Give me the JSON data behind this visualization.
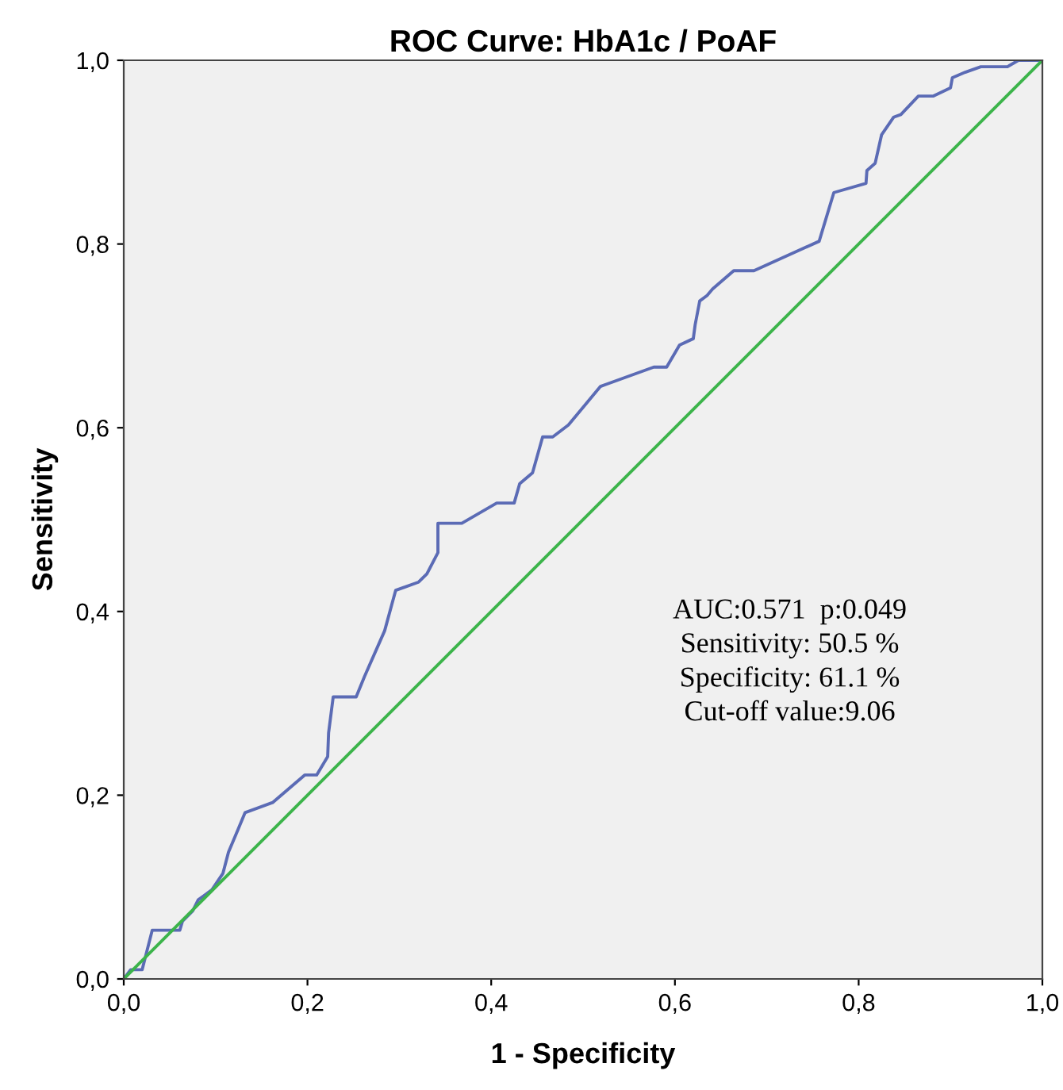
{
  "chart_data": {
    "type": "line",
    "title": "ROC Curve: HbA1c / PoAF",
    "xlabel": "1 - Specificity",
    "ylabel": "Sensitivity",
    "series": [
      {
        "color": "#5b6bb5",
        "x": [
          0,
          0.0075,
          0.02,
          0.031,
          0.061,
          0.064,
          0.075,
          0.081,
          0.096,
          0.108,
          0.114,
          0.125,
          0.132,
          0.162,
          0.197,
          0.21,
          0.222,
          0.223,
          0.228,
          0.253,
          0.262,
          0.284,
          0.296,
          0.321,
          0.33,
          0.342,
          0.342,
          0.368,
          0.406,
          0.425,
          0.431,
          0.445,
          0.456,
          0.467,
          0.484,
          0.519,
          0.577,
          0.591,
          0.605,
          0.62,
          0.622,
          0.627,
          0.635,
          0.641,
          0.664,
          0.686,
          0.757,
          0.773,
          0.808,
          0.809,
          0.818,
          0.825,
          0.838,
          0.846,
          0.865,
          0.881,
          0.9,
          0.902,
          0.916,
          0.933,
          0.962,
          0.974,
          1.0
        ],
        "values": [
          0,
          0.01,
          0.01,
          0.053,
          0.053,
          0.063,
          0.074,
          0.086,
          0.097,
          0.115,
          0.138,
          0.164,
          0.181,
          0.192,
          0.222,
          0.222,
          0.242,
          0.268,
          0.307,
          0.307,
          0.329,
          0.379,
          0.423,
          0.432,
          0.441,
          0.464,
          0.496,
          0.496,
          0.518,
          0.518,
          0.539,
          0.551,
          0.59,
          0.59,
          0.603,
          0.645,
          0.666,
          0.666,
          0.69,
          0.697,
          0.712,
          0.738,
          0.744,
          0.751,
          0.771,
          0.771,
          0.803,
          0.856,
          0.866,
          0.88,
          0.888,
          0.919,
          0.938,
          0.941,
          0.961,
          0.961,
          0.97,
          0.981,
          0.987,
          0.993,
          0.993,
          1.0,
          1.0
        ]
      },
      {
        "color": "#3cb44b",
        "x": [
          0,
          1
        ],
        "values": [
          0,
          1
        ]
      }
    ],
    "xlim": [
      0,
      1
    ],
    "ylim": [
      0,
      1
    ],
    "xticks": [
      {
        "value": 0,
        "label": "0,0"
      },
      {
        "value": 0.2,
        "label": "0,2"
      },
      {
        "value": 0.4,
        "label": "0,4"
      },
      {
        "value": 0.6,
        "label": "0,6"
      },
      {
        "value": 0.8,
        "label": "0,8"
      },
      {
        "value": 1,
        "label": "1,0"
      }
    ],
    "yticks": [
      {
        "value": 0,
        "label": "0,0"
      },
      {
        "value": 0.2,
        "label": "0,2"
      },
      {
        "value": 0.4,
        "label": "0,4"
      },
      {
        "value": 0.6,
        "label": "0,6"
      },
      {
        "value": 0.8,
        "label": "0,8"
      },
      {
        "value": 1,
        "label": "1,0"
      }
    ],
    "grid": false,
    "legend": false,
    "marker": "none",
    "line_style": "solid",
    "annotations": [
      "AUC:0.571  p:0.049",
      "Sensitivity: 50.5 %",
      "Specificity: 61.1 %",
      "Cut-off value:9.06"
    ]
  }
}
